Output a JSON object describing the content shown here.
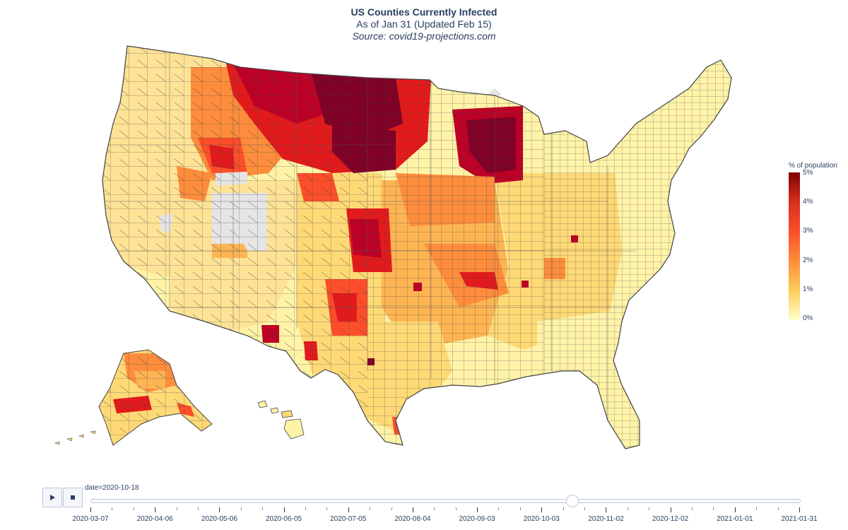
{
  "title": {
    "main": "US Counties Currently Infected",
    "sub": "As of Jan 31 (Updated Feb 15)",
    "source": "Source: covid19-projections.com"
  },
  "legend": {
    "title": "% of population",
    "ticks": [
      "5%",
      "4%",
      "3%",
      "2%",
      "1%",
      "0%"
    ]
  },
  "colorscale": [
    "#ffffcc",
    "#fdcc5c",
    "#fd8d3c",
    "#fc4e2a",
    "#d7301f",
    "#7f0000"
  ],
  "controls": {
    "play_label": "play-icon",
    "stop_label": "stop-icon",
    "current_date_label": "date=2020-10-18"
  },
  "slider": {
    "current_value": "2020-10-18",
    "current_fraction": 0.68,
    "tick_labels": [
      "2020-03-07",
      "2020-04-06",
      "2020-05-06",
      "2020-06-05",
      "2020-07-05",
      "2020-08-04",
      "2020-09-03",
      "2020-10-03",
      "2020-11-02",
      "2020-12-02",
      "2021-01-01",
      "2021-01-31"
    ]
  },
  "map": {
    "nodata_color": "#e5e5e5",
    "border_color": "#444444"
  }
}
